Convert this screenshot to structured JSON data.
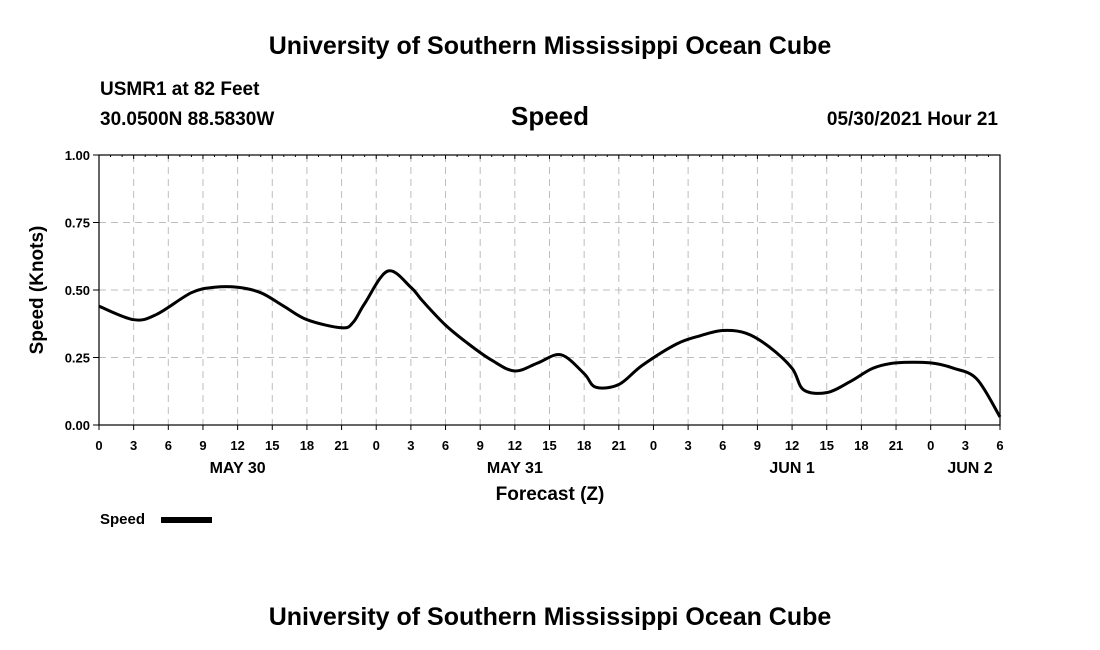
{
  "header": {
    "top_title": "University of Southern Mississippi Ocean Cube",
    "station": "USMR1 at 82 Feet",
    "location": "30.0500N  88.5830W",
    "timestamp": "05/30/2021 Hour 21",
    "bottom_title": "University of Southern Mississippi Ocean Cube"
  },
  "chart_data": {
    "type": "line",
    "title": "Speed",
    "xlabel": "Forecast (Z)",
    "ylabel": "Speed (Knots)",
    "xlim": [
      0,
      78
    ],
    "ylim": [
      0,
      1
    ],
    "grid": true,
    "y_ticks": [
      "0.00",
      "0.25",
      "0.50",
      "0.75",
      "1.00"
    ],
    "x_tick_labels": [
      "0",
      "3",
      "6",
      "9",
      "12",
      "15",
      "18",
      "21",
      "0",
      "3",
      "6",
      "9",
      "12",
      "15",
      "18",
      "21",
      "0",
      "3",
      "6",
      "9",
      "12",
      "15",
      "18",
      "21",
      "0",
      "3",
      "6"
    ],
    "date_labels": [
      {
        "label": "MAY 30",
        "hour": 12
      },
      {
        "label": "MAY 31",
        "hour": 36
      },
      {
        "label": "JUN 1",
        "hour": 60
      },
      {
        "label": "JUN 2",
        "hour": 78
      }
    ],
    "series": [
      {
        "name": "Speed",
        "color": "#000000",
        "x": [
          0,
          3,
          5,
          8,
          10,
          12,
          14,
          16,
          18,
          21,
          22,
          23,
          25,
          27,
          28,
          30,
          32,
          34,
          36,
          38,
          40,
          42,
          43,
          45,
          47,
          50,
          52,
          54,
          56,
          58,
          60,
          61,
          63,
          65,
          67,
          69,
          72,
          74,
          76,
          78
        ],
        "values": [
          0.44,
          0.39,
          0.41,
          0.49,
          0.51,
          0.51,
          0.49,
          0.44,
          0.39,
          0.36,
          0.38,
          0.45,
          0.57,
          0.51,
          0.46,
          0.37,
          0.3,
          0.24,
          0.2,
          0.23,
          0.26,
          0.19,
          0.14,
          0.15,
          0.22,
          0.3,
          0.33,
          0.35,
          0.34,
          0.29,
          0.21,
          0.13,
          0.12,
          0.16,
          0.21,
          0.23,
          0.23,
          0.21,
          0.17,
          0.03
        ]
      }
    ],
    "legend": {
      "label": "Speed",
      "position": "bottom-left"
    }
  }
}
